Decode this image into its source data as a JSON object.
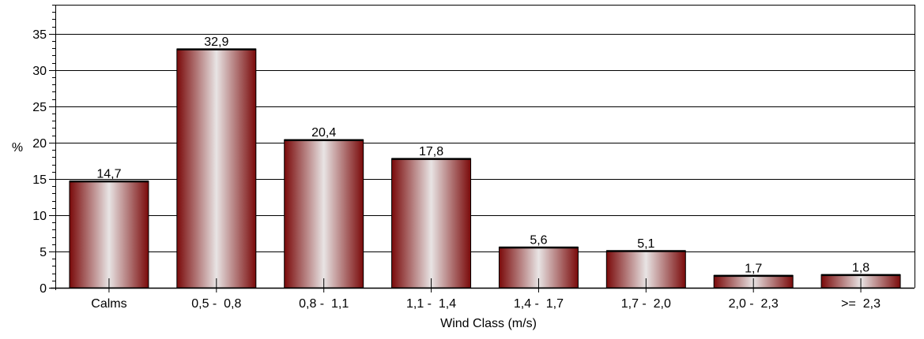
{
  "chart_data": {
    "type": "bar",
    "categories": [
      "Calms",
      "0,5 -  0,8",
      "0,8 -  1,1",
      "1,1 -  1,4",
      "1,4 -  1,7",
      "1,7 -  2,0",
      "2,0 -  2,3",
      ">=  2,3"
    ],
    "values": [
      14.7,
      32.9,
      20.4,
      17.8,
      5.6,
      5.1,
      1.7,
      1.8
    ],
    "value_labels": [
      "14,7",
      "32,9",
      "20,4",
      "17,8",
      "5,6",
      "5,1",
      "1,7",
      "1,8"
    ],
    "title": "",
    "xlabel": "Wind Class (m/s)",
    "ylabel": "%",
    "ylim": [
      0,
      39
    ],
    "yticks": [
      0,
      5,
      10,
      15,
      20,
      25,
      30,
      35
    ],
    "grid": true,
    "legend": "none",
    "colors": {
      "bar_edge": "#7a0a0a",
      "bar_center": "#e8e4e4",
      "grid": "#000000"
    }
  }
}
